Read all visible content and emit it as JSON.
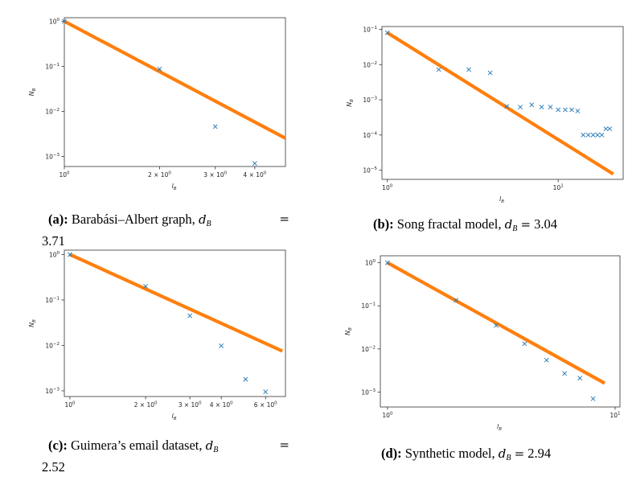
{
  "chart_data": [
    {
      "type": "scatter",
      "scale": "log-log",
      "xlabel": "l_B",
      "ylabel": "N_B",
      "xlim": [
        1,
        5
      ],
      "ylim": [
        0.0006,
        1.2
      ],
      "x_ticks": [
        {
          "v": 1,
          "b": "10",
          "e": "0"
        },
        {
          "v": 2,
          "b": "2 × 10",
          "e": "0"
        },
        {
          "v": 3,
          "b": "3 × 10",
          "e": "0"
        },
        {
          "v": 4,
          "b": "4 × 10",
          "e": "0"
        }
      ],
      "y_ticks": [
        {
          "v": 1,
          "b": "10",
          "e": "0"
        },
        {
          "v": 0.1,
          "b": "10",
          "e": "−1"
        },
        {
          "v": 0.01,
          "b": "10",
          "e": "−2"
        },
        {
          "v": 0.001,
          "b": "10",
          "e": "−3"
        }
      ],
      "points": [
        [
          1,
          1.0
        ],
        [
          2,
          0.087
        ],
        [
          3,
          0.0046
        ],
        [
          4,
          0.0007
        ]
      ],
      "fit_line": {
        "x0": 1,
        "y0": 1.0,
        "x1": 5,
        "y1": 0.00254
      },
      "caption": {
        "label": "(a):",
        "text": "Barabási–Albert graph,",
        "symbol": "d",
        "subscript": "B",
        "equals": "=",
        "value": "3.71"
      }
    },
    {
      "type": "scatter",
      "scale": "log-log",
      "xlabel": "l_B",
      "ylabel": "N_B",
      "xlim": [
        0.93,
        24
      ],
      "ylim": [
        5.5e-06,
        0.12
      ],
      "x_ticks": [
        {
          "v": 1,
          "b": "10",
          "e": "0"
        },
        {
          "v": 10,
          "b": "10",
          "e": "1"
        }
      ],
      "y_ticks": [
        {
          "v": 0.1,
          "b": "10",
          "e": "−1"
        },
        {
          "v": 0.01,
          "b": "10",
          "e": "−2"
        },
        {
          "v": 0.001,
          "b": "10",
          "e": "−3"
        },
        {
          "v": 0.0001,
          "b": "10",
          "e": "−4"
        },
        {
          "v": 1e-05,
          "b": "10",
          "e": "−5"
        }
      ],
      "points": [
        [
          1,
          0.08
        ],
        [
          2,
          0.0072
        ],
        [
          3,
          0.0072
        ],
        [
          4,
          0.0058
        ],
        [
          5,
          0.00065
        ],
        [
          6,
          0.00062
        ],
        [
          7,
          0.00072
        ],
        [
          8,
          0.00062
        ],
        [
          9,
          0.00062
        ],
        [
          10,
          0.00052
        ],
        [
          11,
          0.00052
        ],
        [
          12,
          0.00052
        ],
        [
          13,
          0.00048
        ],
        [
          14,
          0.0001
        ],
        [
          15,
          0.0001
        ],
        [
          16,
          0.0001
        ],
        [
          17,
          0.0001
        ],
        [
          18,
          0.0001
        ],
        [
          19,
          0.00015
        ],
        [
          20,
          0.00015
        ]
      ],
      "fit_line": {
        "x0": 1,
        "y0": 0.08,
        "x1": 21,
        "y1": 7.8e-06
      },
      "caption": {
        "label": "(b):",
        "text": "Song fractal model,",
        "symbol": "d",
        "subscript": "B",
        "equals": "=",
        "value": "3.04"
      }
    },
    {
      "type": "scatter",
      "scale": "log-log",
      "xlabel": "l_B",
      "ylabel": "N_B",
      "xlim": [
        0.95,
        7.2
      ],
      "ylim": [
        0.00075,
        1.25
      ],
      "x_ticks": [
        {
          "v": 1,
          "b": "10",
          "e": "0"
        },
        {
          "v": 2,
          "b": "2 × 10",
          "e": "0"
        },
        {
          "v": 3,
          "b": "3 × 10",
          "e": "0"
        },
        {
          "v": 4,
          "b": "4 × 10",
          "e": "0"
        },
        {
          "v": 6,
          "b": "6 × 10",
          "e": "0"
        }
      ],
      "y_ticks": [
        {
          "v": 1,
          "b": "10",
          "e": "0"
        },
        {
          "v": 0.1,
          "b": "10",
          "e": "−1"
        },
        {
          "v": 0.01,
          "b": "10",
          "e": "−2"
        },
        {
          "v": 0.001,
          "b": "10",
          "e": "−3"
        }
      ],
      "points": [
        [
          1,
          1.0
        ],
        [
          2,
          0.2
        ],
        [
          3,
          0.045
        ],
        [
          4,
          0.0098
        ],
        [
          5,
          0.0018
        ],
        [
          6,
          0.00095
        ]
      ],
      "fit_line": {
        "x0": 1,
        "y0": 1.0,
        "x1": 7,
        "y1": 0.0075
      },
      "caption": {
        "label": "(c):",
        "text": "Guimera’s email dataset,",
        "symbol": "d",
        "subscript": "B",
        "equals": "=",
        "value": "2.52"
      }
    },
    {
      "type": "scatter",
      "scale": "log-log",
      "xlabel": "l_B",
      "ylabel": "N_B",
      "xlim": [
        0.93,
        10.5
      ],
      "ylim": [
        0.00045,
        1.45
      ],
      "x_ticks": [
        {
          "v": 1,
          "b": "10",
          "e": "0"
        },
        {
          "v": 10,
          "b": "10",
          "e": "1"
        }
      ],
      "y_ticks": [
        {
          "v": 1,
          "b": "10",
          "e": "0"
        },
        {
          "v": 0.1,
          "b": "10",
          "e": "−1"
        },
        {
          "v": 0.01,
          "b": "10",
          "e": "−2"
        },
        {
          "v": 0.001,
          "b": "10",
          "e": "−3"
        }
      ],
      "points": [
        [
          1,
          1.0
        ],
        [
          2,
          0.135
        ],
        [
          3,
          0.035
        ],
        [
          4,
          0.0132
        ],
        [
          5,
          0.0055
        ],
        [
          6,
          0.0027
        ],
        [
          7,
          0.0021
        ],
        [
          8,
          0.0007
        ]
      ],
      "fit_line": {
        "x0": 1,
        "y0": 1.0,
        "x1": 9,
        "y1": 0.0016
      },
      "caption": {
        "label": "(d):",
        "text": "Synthetic model,",
        "symbol": "d",
        "subscript": "B",
        "equals": "=",
        "value": "2.94"
      }
    }
  ],
  "colors": {
    "points": "#1f77b4",
    "fit": "#ff7f0e",
    "axes": "#000000"
  }
}
